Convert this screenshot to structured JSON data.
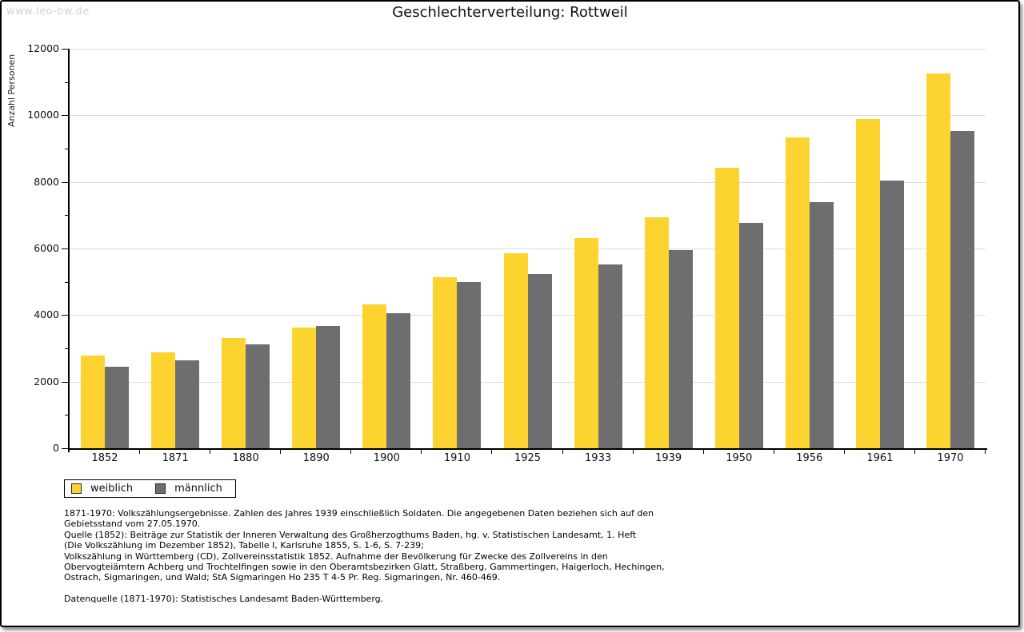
{
  "watermark": "www.leo-bw.de",
  "title": "Geschlechterverteilung: Rottweil",
  "chart_data": {
    "type": "bar",
    "title": "Geschlechterverteilung: Rottweil",
    "xlabel": "",
    "ylabel": "Anzahl Personen",
    "ylim": [
      0,
      12000
    ],
    "y_major_step": 2000,
    "y_minor_step": 1000,
    "y_ticks": [
      0,
      2000,
      4000,
      6000,
      8000,
      10000,
      12000
    ],
    "grid": true,
    "legend_position": "bottom-left",
    "categories": [
      "1852",
      "1871",
      "1880",
      "1890",
      "1900",
      "1910",
      "1925",
      "1933",
      "1939",
      "1950",
      "1956",
      "1961",
      "1970"
    ],
    "series": [
      {
        "name": "weiblich",
        "color": "#FDD330",
        "values": [
          2790,
          2890,
          3320,
          3620,
          4320,
          5140,
          5860,
          6310,
          6930,
          8420,
          9330,
          9900,
          11250
        ]
      },
      {
        "name": "männlich",
        "color": "#6E6E70",
        "values": [
          2450,
          2630,
          3130,
          3670,
          4060,
          4990,
          5230,
          5520,
          5960,
          6760,
          7400,
          8050,
          9530
        ]
      }
    ]
  },
  "footnotes": {
    "lines": [
      "1871-1970: Volkszählungsergebnisse. Zahlen des Jahres 1939 einschließlich Soldaten. Die angegebenen Daten beziehen sich auf den",
      "Gebietsstand vom 27.05.1970.",
      "Quelle (1852): Beiträge zur Statistik der Inneren Verwaltung des Großherzogthums Baden, hg. v. Statistischen Landesamt, 1. Heft",
      "(Die Volkszählung im Dezember 1852), Tabelle I, Karlsruhe 1855, S. 1-6, S. 7-239;",
      "Volkszählung in Württemberg (CD), Zollvereinsstatistik 1852. Aufnahme der Bevölkerung für Zwecke des Zollvereins in den",
      "Obervogteiämtern Achberg und Trochtelfingen sowie in den Oberamtsbezirken Glatt, Straßberg, Gammertingen, Haigerloch, Hechingen,",
      "Ostrach, Sigmaringen, und Wald; StA Sigmaringen Ho 235 T 4-5 Pr. Reg. Sigmaringen, Nr. 460-469.",
      "",
      "Datenquelle (1871-1970): Statistisches Landesamt Baden-Württemberg."
    ]
  },
  "colors": {
    "female_bar": "#FDD330",
    "male_bar": "#6E6E70",
    "gridline": "#dcdcdc",
    "axis": "#000000",
    "watermark": "#d2d2d2",
    "frame_border": "#000000"
  }
}
